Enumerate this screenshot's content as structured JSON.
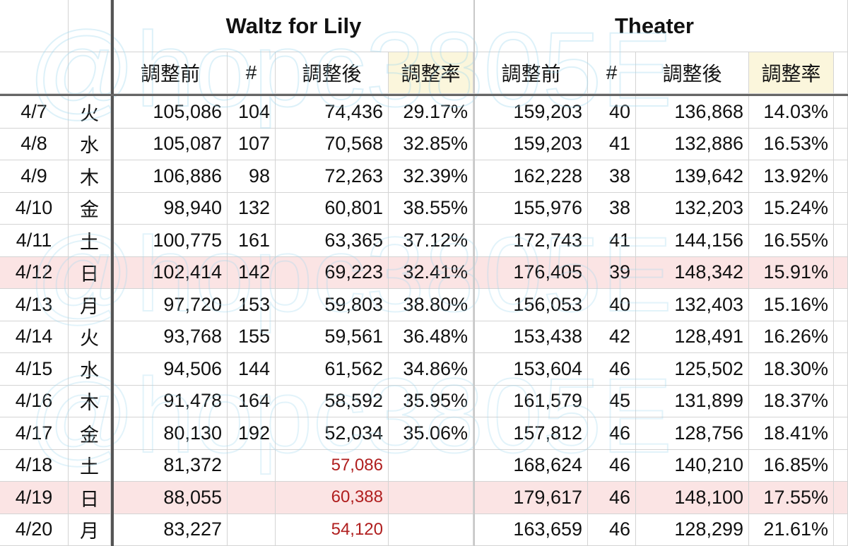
{
  "groups": {
    "waltz": "Waltz for Lily",
    "theater": "Theater"
  },
  "subheaders": {
    "before": "調整前",
    "count": "#",
    "after": "調整後",
    "rate": "調整率"
  },
  "watermark": "@hopc3805E",
  "colors": {
    "weekend_row": "#fbe4e4",
    "rate_header": "#fbf6dc",
    "estimate_text": "#b01e1e"
  },
  "rows": [
    {
      "date": "4/7",
      "dow": "火",
      "w_before": "105,086",
      "w_count": "104",
      "w_after": "74,436",
      "w_rate": "29.17%",
      "t_before": "159,203",
      "t_count": "40",
      "t_after": "136,868",
      "t_rate": "14.03%",
      "highlight": false,
      "estimate": false
    },
    {
      "date": "4/8",
      "dow": "水",
      "w_before": "105,087",
      "w_count": "107",
      "w_after": "70,568",
      "w_rate": "32.85%",
      "t_before": "159,203",
      "t_count": "41",
      "t_after": "132,886",
      "t_rate": "16.53%",
      "highlight": false,
      "estimate": false
    },
    {
      "date": "4/9",
      "dow": "木",
      "w_before": "106,886",
      "w_count": "98",
      "w_after": "72,263",
      "w_rate": "32.39%",
      "t_before": "162,228",
      "t_count": "38",
      "t_after": "139,642",
      "t_rate": "13.92%",
      "highlight": false,
      "estimate": false
    },
    {
      "date": "4/10",
      "dow": "金",
      "w_before": "98,940",
      "w_count": "132",
      "w_after": "60,801",
      "w_rate": "38.55%",
      "t_before": "155,976",
      "t_count": "38",
      "t_after": "132,203",
      "t_rate": "15.24%",
      "highlight": false,
      "estimate": false
    },
    {
      "date": "4/11",
      "dow": "土",
      "w_before": "100,775",
      "w_count": "161",
      "w_after": "63,365",
      "w_rate": "37.12%",
      "t_before": "172,743",
      "t_count": "41",
      "t_after": "144,156",
      "t_rate": "16.55%",
      "highlight": false,
      "estimate": false
    },
    {
      "date": "4/12",
      "dow": "日",
      "w_before": "102,414",
      "w_count": "142",
      "w_after": "69,223",
      "w_rate": "32.41%",
      "t_before": "176,405",
      "t_count": "39",
      "t_after": "148,342",
      "t_rate": "15.91%",
      "highlight": true,
      "estimate": false
    },
    {
      "date": "4/13",
      "dow": "月",
      "w_before": "97,720",
      "w_count": "153",
      "w_after": "59,803",
      "w_rate": "38.80%",
      "t_before": "156,053",
      "t_count": "40",
      "t_after": "132,403",
      "t_rate": "15.16%",
      "highlight": false,
      "estimate": false
    },
    {
      "date": "4/14",
      "dow": "火",
      "w_before": "93,768",
      "w_count": "155",
      "w_after": "59,561",
      "w_rate": "36.48%",
      "t_before": "153,438",
      "t_count": "42",
      "t_after": "128,491",
      "t_rate": "16.26%",
      "highlight": false,
      "estimate": false
    },
    {
      "date": "4/15",
      "dow": "水",
      "w_before": "94,506",
      "w_count": "144",
      "w_after": "61,562",
      "w_rate": "34.86%",
      "t_before": "153,604",
      "t_count": "46",
      "t_after": "125,502",
      "t_rate": "18.30%",
      "highlight": false,
      "estimate": false
    },
    {
      "date": "4/16",
      "dow": "木",
      "w_before": "91,478",
      "w_count": "164",
      "w_after": "58,592",
      "w_rate": "35.95%",
      "t_before": "161,579",
      "t_count": "45",
      "t_after": "131,899",
      "t_rate": "18.37%",
      "highlight": false,
      "estimate": false
    },
    {
      "date": "4/17",
      "dow": "金",
      "w_before": "80,130",
      "w_count": "192",
      "w_after": "52,034",
      "w_rate": "35.06%",
      "t_before": "157,812",
      "t_count": "46",
      "t_after": "128,756",
      "t_rate": "18.41%",
      "highlight": false,
      "estimate": false
    },
    {
      "date": "4/18",
      "dow": "土",
      "w_before": "81,372",
      "w_count": "",
      "w_after": "57,086",
      "w_rate": "",
      "t_before": "168,624",
      "t_count": "46",
      "t_after": "140,210",
      "t_rate": "16.85%",
      "highlight": false,
      "estimate": true
    },
    {
      "date": "4/19",
      "dow": "日",
      "w_before": "88,055",
      "w_count": "",
      "w_after": "60,388",
      "w_rate": "",
      "t_before": "179,617",
      "t_count": "46",
      "t_after": "148,100",
      "t_rate": "17.55%",
      "highlight": true,
      "estimate": true
    },
    {
      "date": "4/20",
      "dow": "月",
      "w_before": "83,227",
      "w_count": "",
      "w_after": "54,120",
      "w_rate": "",
      "t_before": "163,659",
      "t_count": "46",
      "t_after": "128,299",
      "t_rate": "21.61%",
      "highlight": false,
      "estimate": true
    }
  ]
}
